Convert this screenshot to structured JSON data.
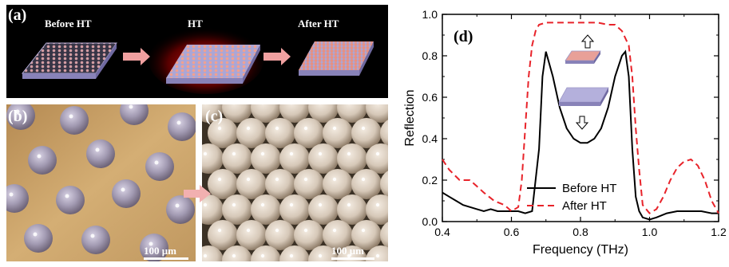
{
  "figure": {
    "panel_a": {
      "label": "(a)",
      "stages": [
        "Before HT",
        "HT",
        "After HT"
      ]
    },
    "panel_b": {
      "label": "(b)",
      "scale_bar": "100 μm"
    },
    "panel_c": {
      "label": "(c)",
      "scale_bar": "100 μm"
    },
    "panel_d": {
      "label": "(d)"
    }
  },
  "chart_data": {
    "type": "line",
    "xlabel": "Frequency (THz)",
    "ylabel": "Reflection",
    "xlim": [
      0.4,
      1.2
    ],
    "ylim": [
      0.0,
      1.0
    ],
    "xticks": [
      "0.4",
      "0.6",
      "0.8",
      "1.0",
      "1.2"
    ],
    "yticks": [
      "0.0",
      "0.2",
      "0.4",
      "0.6",
      "0.8",
      "1.0"
    ],
    "legend_position": "bottom-right",
    "grid": false,
    "series": [
      {
        "name": "Before HT",
        "color": "#000000",
        "style": "solid",
        "x": [
          0.4,
          0.42,
          0.44,
          0.46,
          0.48,
          0.5,
          0.52,
          0.54,
          0.56,
          0.58,
          0.6,
          0.62,
          0.64,
          0.66,
          0.68,
          0.69,
          0.7,
          0.72,
          0.74,
          0.76,
          0.78,
          0.8,
          0.82,
          0.84,
          0.86,
          0.88,
          0.9,
          0.92,
          0.93,
          0.94,
          0.95,
          0.96,
          0.97,
          0.98,
          1.0,
          1.02,
          1.05,
          1.08,
          1.1,
          1.12,
          1.15,
          1.18,
          1.2
        ],
        "y": [
          0.14,
          0.12,
          0.1,
          0.08,
          0.07,
          0.06,
          0.05,
          0.06,
          0.05,
          0.05,
          0.05,
          0.05,
          0.04,
          0.05,
          0.35,
          0.7,
          0.82,
          0.7,
          0.55,
          0.45,
          0.4,
          0.38,
          0.38,
          0.4,
          0.45,
          0.55,
          0.7,
          0.8,
          0.82,
          0.7,
          0.35,
          0.12,
          0.05,
          0.02,
          0.01,
          0.02,
          0.04,
          0.05,
          0.05,
          0.05,
          0.05,
          0.04,
          0.04
        ]
      },
      {
        "name": "After HT",
        "color": "#e8232a",
        "style": "dashed",
        "x": [
          0.4,
          0.42,
          0.45,
          0.48,
          0.5,
          0.52,
          0.55,
          0.58,
          0.6,
          0.62,
          0.63,
          0.64,
          0.65,
          0.66,
          0.67,
          0.68,
          0.7,
          0.72,
          0.75,
          0.8,
          0.85,
          0.88,
          0.9,
          0.92,
          0.94,
          0.95,
          0.96,
          0.97,
          0.98,
          1.0,
          1.02,
          1.04,
          1.06,
          1.08,
          1.1,
          1.12,
          1.14,
          1.16,
          1.18,
          1.2
        ],
        "y": [
          0.3,
          0.25,
          0.2,
          0.2,
          0.17,
          0.14,
          0.1,
          0.08,
          0.05,
          0.07,
          0.2,
          0.45,
          0.7,
          0.85,
          0.92,
          0.95,
          0.96,
          0.96,
          0.96,
          0.96,
          0.96,
          0.95,
          0.95,
          0.92,
          0.85,
          0.7,
          0.45,
          0.25,
          0.08,
          0.04,
          0.06,
          0.12,
          0.2,
          0.26,
          0.29,
          0.3,
          0.27,
          0.2,
          0.1,
          0.04
        ]
      }
    ]
  }
}
